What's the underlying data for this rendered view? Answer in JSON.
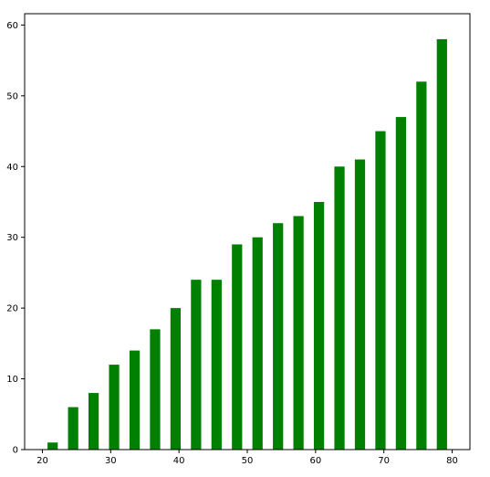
{
  "chart_data": {
    "type": "bar",
    "title": "",
    "xlabel": "",
    "ylabel": "",
    "x": [
      21.5,
      24.5,
      27.5,
      30.5,
      33.5,
      36.5,
      39.5,
      42.5,
      45.5,
      48.5,
      51.5,
      54.5,
      57.5,
      60.5,
      63.5,
      66.5,
      69.5,
      72.5,
      75.5,
      78.5
    ],
    "values": [
      1,
      6,
      8,
      12,
      14,
      17,
      20,
      24,
      24,
      29,
      30,
      32,
      33,
      35,
      40,
      41,
      45,
      47,
      52,
      58
    ],
    "bar_width": 1.5,
    "xlim": [
      17.4,
      82.6
    ],
    "ylim": [
      0,
      61.6
    ],
    "xticks": [
      20,
      30,
      40,
      50,
      60,
      70,
      80
    ],
    "yticks": [
      0,
      10,
      20,
      30,
      40,
      50,
      60
    ],
    "bar_color": "#008000",
    "grid": false,
    "legend": "none"
  }
}
